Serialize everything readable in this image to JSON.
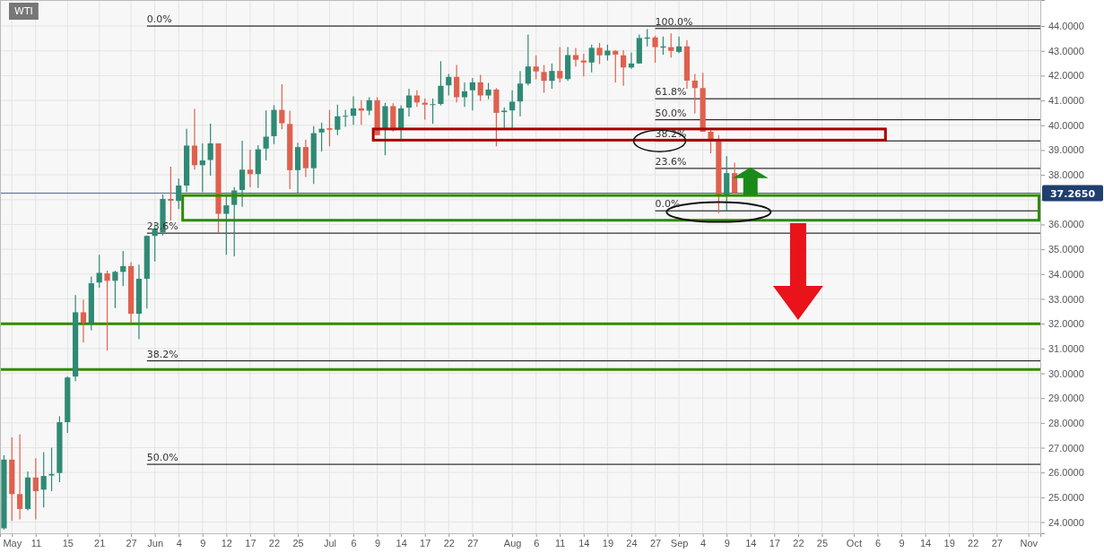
{
  "chart_data": {
    "type": "candlestick",
    "title": "WTI",
    "categories": [
      null,
      "May",
      null,
      null,
      "11",
      null,
      null,
      null,
      "15",
      null,
      null,
      null,
      "21",
      null,
      null,
      null,
      "27",
      null,
      null,
      "Jun",
      null,
      null,
      "4",
      null,
      null,
      "9",
      null,
      null,
      "12",
      null,
      null,
      "17",
      null,
      null,
      "22",
      null,
      null,
      "25",
      null,
      null,
      null,
      "Jul",
      null,
      null,
      "6",
      null,
      null,
      "9",
      null,
      null,
      "14",
      null,
      null,
      "17",
      null,
      null,
      "22",
      null,
      null,
      "27",
      null,
      null,
      null,
      null,
      "Aug",
      null,
      null,
      "6",
      null,
      null,
      "11",
      null,
      null,
      "14",
      null,
      null,
      "19",
      null,
      null,
      "24",
      null,
      null,
      "27",
      null,
      null,
      "Sep",
      null,
      null,
      "4",
      null,
      null,
      "9",
      null,
      null,
      "14",
      null,
      null,
      "17",
      null,
      null,
      "22",
      null,
      null,
      "25",
      null,
      null,
      null,
      "Oct",
      null,
      null,
      "6",
      null,
      null,
      "9",
      null,
      null,
      "14",
      null,
      null,
      "19",
      null,
      null,
      "22",
      null,
      null,
      "27",
      null,
      null,
      null,
      "Nov",
      null
    ],
    "ohlc": [
      [
        23.75,
        26.7,
        23.7,
        26.52
      ],
      [
        26.52,
        27.42,
        24.05,
        25.13
      ],
      [
        25.13,
        27.54,
        24.11,
        24.53
      ],
      [
        24.53,
        26.04,
        24.47,
        25.8
      ],
      [
        25.8,
        26.58,
        24.11,
        25.25
      ],
      [
        25.31,
        26.82,
        24.59,
        25.86
      ],
      [
        25.88,
        27.0,
        25.25,
        25.94
      ],
      [
        25.98,
        28.27,
        25.61,
        28.03
      ],
      [
        28.03,
        29.87,
        27.6,
        29.83
      ],
      [
        29.87,
        33.15,
        29.68,
        32.46
      ],
      [
        32.46,
        32.97,
        31.25,
        32.04
      ],
      [
        32.04,
        33.9,
        31.73,
        33.63
      ],
      [
        33.66,
        34.78,
        33.45,
        34.05
      ],
      [
        34.03,
        34.14,
        30.92,
        33.73
      ],
      [
        33.73,
        34.14,
        32.63,
        34.09
      ],
      [
        34.09,
        34.93,
        33.51,
        34.32
      ],
      [
        34.32,
        34.48,
        32.04,
        32.4
      ],
      [
        32.4,
        34.38,
        31.37,
        33.81
      ],
      [
        33.81,
        35.56,
        32.61,
        35.54
      ],
      [
        35.54,
        36.01,
        34.51,
        35.83
      ],
      [
        35.68,
        37.21,
        35.56,
        37.03
      ],
      [
        37.03,
        38.33,
        36.16,
        36.96
      ],
      [
        36.95,
        37.85,
        36.62,
        37.57
      ],
      [
        37.57,
        39.86,
        37.31,
        39.18
      ],
      [
        39.18,
        40.66,
        38.21,
        38.39
      ],
      [
        38.39,
        39.27,
        37.31,
        38.58
      ],
      [
        38.6,
        40.06,
        37.97,
        39.27
      ],
      [
        39.27,
        39.27,
        35.68,
        36.43
      ],
      [
        36.43,
        37.19,
        34.78,
        36.77
      ],
      [
        36.79,
        37.51,
        34.72,
        37.37
      ],
      [
        37.39,
        39.38,
        36.71,
        38.21
      ],
      [
        38.21,
        39.02,
        37.51,
        38.03
      ],
      [
        38.03,
        39.2,
        37.47,
        39.03
      ],
      [
        39.06,
        40.6,
        38.58,
        39.54
      ],
      [
        39.56,
        40.81,
        39.24,
        40.62
      ],
      [
        40.62,
        41.65,
        39.84,
        40.08
      ],
      [
        40.05,
        40.59,
        37.43,
        38.19
      ],
      [
        38.19,
        39.3,
        37.25,
        39.12
      ],
      [
        39.12,
        39.42,
        37.91,
        38.27
      ],
      [
        38.27,
        39.96,
        37.63,
        39.68
      ],
      [
        39.71,
        40.11,
        38.94,
        39.86
      ],
      [
        39.88,
        40.62,
        39.15,
        39.82
      ],
      [
        39.82,
        40.83,
        39.6,
        40.36
      ],
      [
        40.36,
        40.62,
        39.94,
        40.38
      ],
      [
        40.38,
        41.17,
        40.02,
        40.68
      ],
      [
        40.68,
        41.01,
        40.02,
        40.59
      ],
      [
        40.59,
        41.13,
        40.41,
        41.01
      ],
      [
        41.01,
        41.13,
        39.6,
        39.6
      ],
      [
        39.84,
        40.9,
        38.79,
        40.77
      ],
      [
        40.77,
        40.89,
        39.75,
        39.8
      ],
      [
        39.88,
        40.8,
        39.36,
        40.68
      ],
      [
        40.71,
        41.47,
        40.35,
        41.2
      ],
      [
        41.2,
        41.41,
        40.74,
        40.92
      ],
      [
        40.91,
        41.08,
        40.23,
        40.83
      ],
      [
        40.82,
        41.08,
        40.06,
        40.85
      ],
      [
        40.86,
        42.58,
        40.8,
        41.59
      ],
      [
        41.61,
        42.07,
        41.2,
        41.95
      ],
      [
        41.95,
        42.43,
        40.92,
        41.13
      ],
      [
        41.13,
        41.73,
        40.74,
        41.37
      ],
      [
        41.41,
        41.91,
        40.6,
        41.73
      ],
      [
        41.73,
        42.03,
        40.98,
        41.2
      ],
      [
        41.2,
        41.71,
        41.05,
        41.44
      ],
      [
        41.44,
        41.5,
        39.15,
        40.5
      ],
      [
        40.53,
        40.72,
        39.88,
        40.59
      ],
      [
        40.6,
        41.41,
        39.88,
        40.95
      ],
      [
        40.96,
        42.19,
        40.36,
        41.68
      ],
      [
        41.68,
        43.66,
        41.61,
        42.37
      ],
      [
        42.37,
        42.82,
        41.85,
        42.17
      ],
      [
        42.15,
        42.43,
        41.31,
        41.79
      ],
      [
        41.79,
        42.49,
        41.47,
        42.19
      ],
      [
        42.19,
        43.15,
        41.73,
        41.89
      ],
      [
        41.86,
        43.15,
        41.79,
        42.83
      ],
      [
        42.83,
        43.12,
        42.37,
        42.64
      ],
      [
        42.61,
        42.88,
        41.97,
        42.53
      ],
      [
        42.53,
        43.25,
        42.13,
        43.12
      ],
      [
        43.12,
        43.32,
        42.47,
        42.82
      ],
      [
        42.82,
        43.25,
        42.61,
        43.01
      ],
      [
        43.0,
        43.03,
        41.73,
        42.85
      ],
      [
        42.82,
        43.03,
        41.59,
        42.33
      ],
      [
        42.33,
        42.94,
        42.28,
        42.49
      ],
      [
        42.49,
        43.66,
        42.49,
        43.52
      ],
      [
        43.49,
        43.88,
        43.18,
        43.54
      ],
      [
        43.54,
        43.61,
        42.52,
        43.15
      ],
      [
        43.13,
        43.58,
        42.85,
        43.18
      ],
      [
        43.15,
        43.7,
        42.73,
        43.0
      ],
      [
        42.96,
        43.58,
        42.91,
        43.18
      ],
      [
        43.18,
        43.43,
        41.47,
        41.8
      ],
      [
        41.8,
        42.07,
        40.48,
        41.5
      ],
      [
        41.5,
        42.11,
        39.74,
        39.74
      ],
      [
        39.74,
        39.8,
        38.87,
        39.44
      ],
      [
        39.44,
        39.6,
        36.46,
        37.19
      ],
      [
        37.19,
        38.75,
        36.55,
        38.07
      ],
      [
        38.07,
        38.49,
        37.25,
        37.27
      ],
      null,
      null,
      null,
      null,
      null,
      null,
      null,
      null,
      null,
      null,
      null,
      null,
      null,
      null,
      null,
      null,
      null,
      null,
      null,
      null,
      null,
      null,
      null,
      null,
      null,
      null,
      null,
      null,
      null,
      null,
      null,
      null,
      null,
      null,
      null,
      null,
      null,
      null
    ],
    "ylim": [
      23.55,
      45.05
    ],
    "yticks": [
      {
        "value": 24,
        "label": "24.0000"
      },
      {
        "value": 25,
        "label": "25.0000"
      },
      {
        "value": 26,
        "label": "26.0000"
      },
      {
        "value": 27,
        "label": "27.0000"
      },
      {
        "value": 28,
        "label": "28.0000"
      },
      {
        "value": 29,
        "label": "29.0000"
      },
      {
        "value": 30,
        "label": "30.0000"
      },
      {
        "value": 31,
        "label": "31.0000"
      },
      {
        "value": 32,
        "label": "32.0000"
      },
      {
        "value": 33,
        "label": "33.0000"
      },
      {
        "value": 34,
        "label": "34.0000"
      },
      {
        "value": 35,
        "label": "35.0000"
      },
      {
        "value": 36,
        "label": "36.0000"
      },
      {
        "value": 37,
        "label": null
      },
      {
        "value": 38,
        "label": "38.0000"
      },
      {
        "value": 39,
        "label": "39.0000"
      },
      {
        "value": 40,
        "label": "40.0000"
      },
      {
        "value": 41,
        "label": "41.0000"
      },
      {
        "value": 42,
        "label": "42.0000"
      },
      {
        "value": 43,
        "label": "43.0000"
      },
      {
        "value": 44,
        "label": "44.0000"
      }
    ],
    "grid": true,
    "ref_lines": [
      {
        "axis": "y",
        "value": 44.0,
        "color": "#000000"
      },
      {
        "axis": "y",
        "value": 35.65,
        "color": "#000000"
      },
      {
        "axis": "y",
        "value": 30.5,
        "color": "#000000"
      },
      {
        "axis": "y",
        "value": 26.33,
        "color": "#000000"
      },
      {
        "axis": "y",
        "value": 43.9,
        "color": "#000000"
      },
      {
        "axis": "y",
        "value": 41.07,
        "color": "#000000"
      },
      {
        "axis": "y",
        "value": 40.22,
        "color": "#000000"
      },
      {
        "axis": "y",
        "value": 39.37,
        "color": "#000000"
      },
      {
        "axis": "y",
        "value": 38.26,
        "color": "#000000"
      },
      {
        "axis": "y",
        "value": 36.55,
        "color": "#000000"
      },
      {
        "axis": "y",
        "value": 32.0,
        "color": "#2f8a00"
      },
      {
        "axis": "y",
        "value": 30.15,
        "color": "#2f8a00"
      },
      {
        "axis": "y",
        "value": 37.265,
        "label": "37.2650",
        "color": "#1f3f6e"
      }
    ],
    "annotations": [
      {
        "text": "0.0%",
        "y": 44.0
      },
      {
        "text": "23.6%",
        "y": 35.65
      },
      {
        "text": "38.2%",
        "y": 30.5
      },
      {
        "text": "50.0%",
        "y": 26.33
      },
      {
        "text": "100.0%",
        "y": 43.9
      },
      {
        "text": "61.8%",
        "y": 41.07
      },
      {
        "text": "50.0%",
        "y": 40.22
      },
      {
        "text": "38.2%",
        "y": 39.37
      },
      {
        "text": "23.6%",
        "y": 38.26
      },
      {
        "text": "0.0%",
        "y": 36.55
      }
    ]
  }
}
